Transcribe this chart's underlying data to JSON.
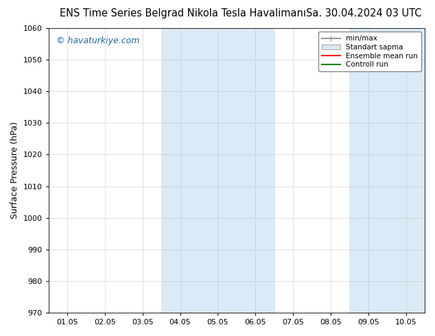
{
  "title_left": "ENS Time Series Belgrad Nikola Tesla Havalimanı",
  "title_right": "Sa. 30.04.2024 03 UTC",
  "ylabel": "Surface Pressure (hPa)",
  "ylim": [
    970,
    1060
  ],
  "yticks": [
    970,
    980,
    990,
    1000,
    1010,
    1020,
    1030,
    1040,
    1050,
    1060
  ],
  "xlim": [
    0,
    9
  ],
  "xtick_positions": [
    0,
    1,
    2,
    3,
    4,
    5,
    6,
    7,
    8,
    9
  ],
  "xtick_labels": [
    "01.05",
    "02.05",
    "03.05",
    "04.05",
    "05.05",
    "06.05",
    "07.05",
    "08.05",
    "09.05",
    "10.05"
  ],
  "shade_regions": [
    {
      "start": 3,
      "end": 5,
      "color": "#daeaf7"
    },
    {
      "start": 8,
      "end": 9,
      "color": "#daeaf7"
    }
  ],
  "watermark": "© havaturkiye.com",
  "watermark_color": "#1a6699",
  "legend_items": [
    {
      "label": "min/max",
      "color": "#999999",
      "type": "hline"
    },
    {
      "label": "Standart sapma",
      "color": "#cccccc",
      "type": "box"
    },
    {
      "label": "Ensemble mean run",
      "color": "#ff0000",
      "type": "line"
    },
    {
      "label": "Controll run",
      "color": "#008800",
      "type": "line"
    }
  ],
  "bg_color": "#ffffff",
  "plot_bg_color": "#ffffff",
  "title_fontsize": 10.5,
  "ylabel_fontsize": 9,
  "tick_fontsize": 8,
  "legend_fontsize": 7.5,
  "watermark_fontsize": 9
}
